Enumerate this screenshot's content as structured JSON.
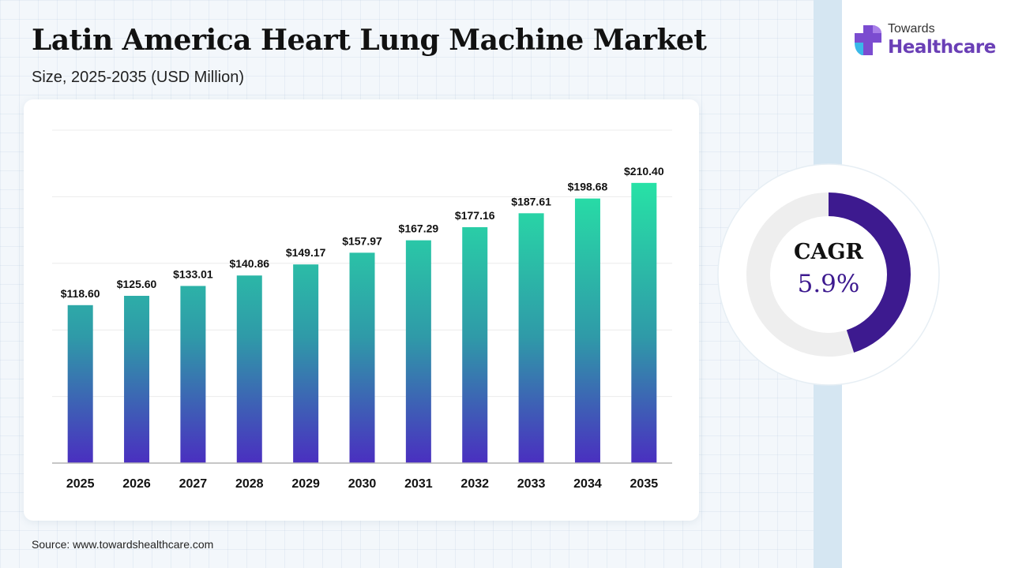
{
  "header": {
    "title": "Latin America Heart Lung Machine Market",
    "subtitle": "Size, 2025-2035 (USD Million)"
  },
  "brand": {
    "top": "Towards",
    "main": "Healthcare",
    "icon": "medical-cross-icon",
    "color": "#6a3fb6"
  },
  "cagr": {
    "label": "CAGR",
    "value": "5.9%",
    "fraction": 0.45,
    "ring_color": "#3d1a8f",
    "track_color": "#eeeeee"
  },
  "source": "Source: www.towardshealthcare.com",
  "chart_data": {
    "type": "bar",
    "categories": [
      "2025",
      "2026",
      "2027",
      "2028",
      "2029",
      "2030",
      "2031",
      "2032",
      "2033",
      "2034",
      "2035"
    ],
    "values": [
      118.6,
      125.6,
      133.01,
      140.86,
      149.17,
      157.97,
      167.29,
      177.16,
      187.61,
      198.68,
      210.4
    ],
    "data_labels": [
      "$118.60",
      "$125.60",
      "$133.01",
      "$140.86",
      "$149.17",
      "$157.97",
      "$167.29",
      "$177.16",
      "$187.61",
      "$198.68",
      "$210.40"
    ],
    "title": "",
    "xlabel": "",
    "ylabel": "",
    "ylim": [
      0,
      250
    ],
    "grid": true,
    "legend": "none",
    "colors": {
      "bar_top": "#27e2a6",
      "bar_mid": "#2f9aa8",
      "bar_bottom": "#4a2fc0",
      "grid": "#ececec",
      "axis": "#b4b4b4"
    }
  }
}
